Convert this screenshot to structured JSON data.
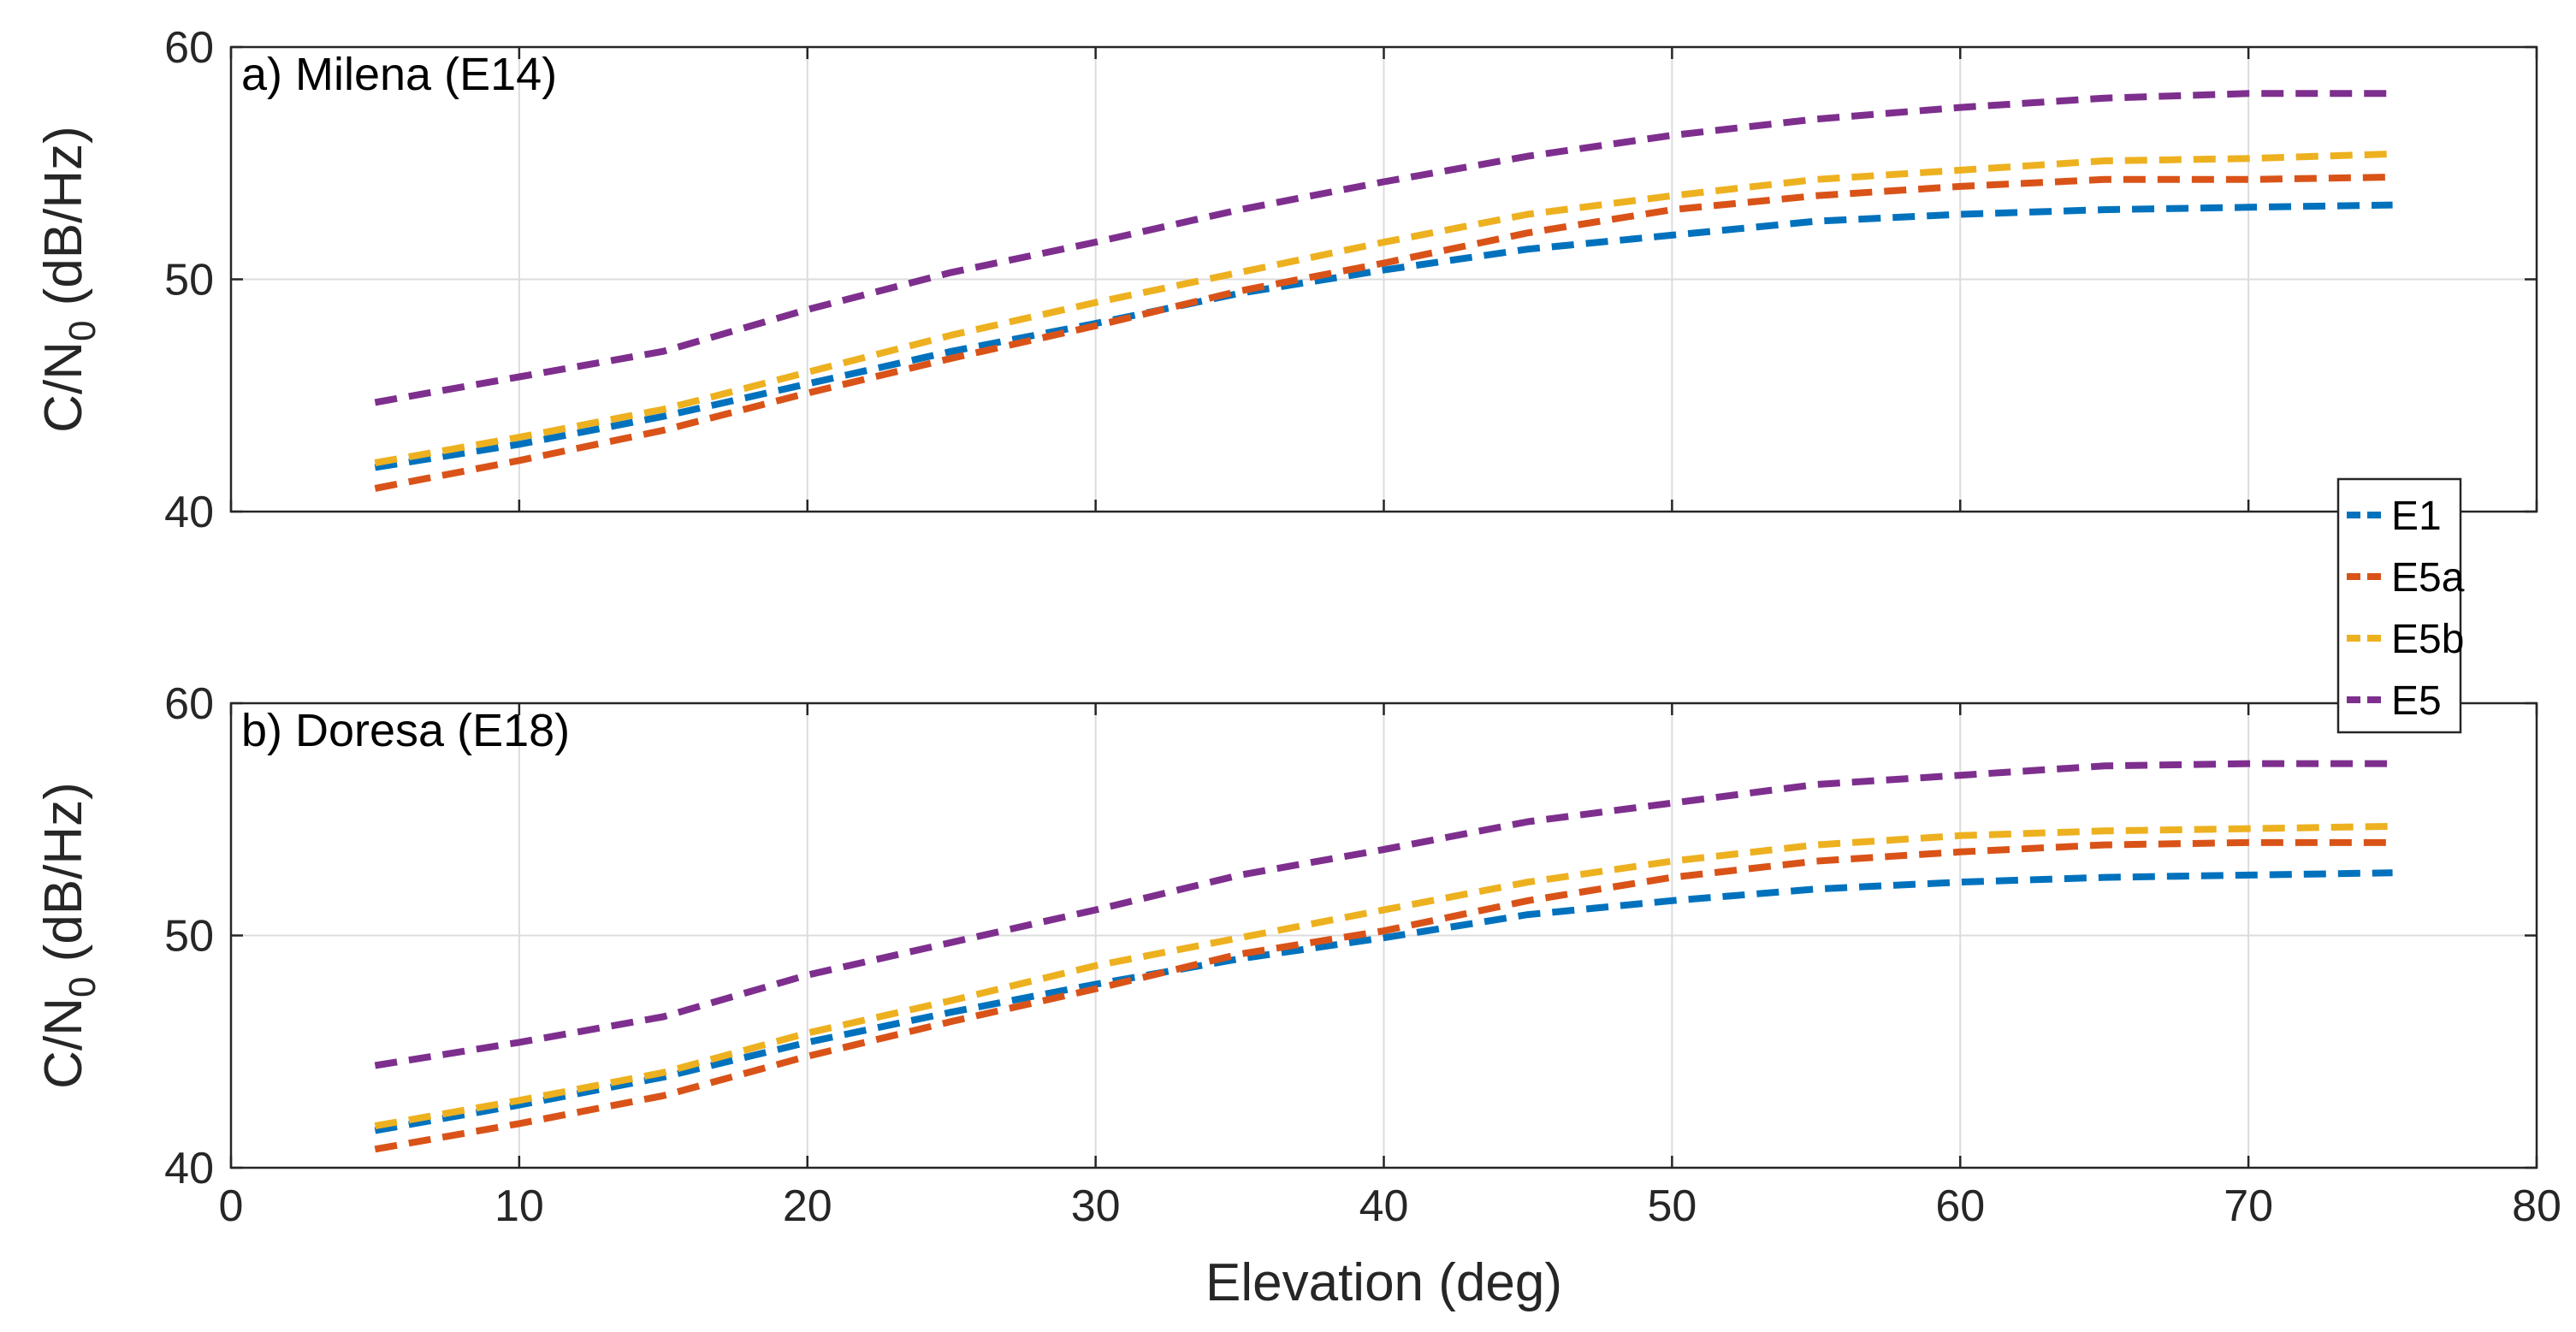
{
  "chart_data": [
    {
      "type": "line",
      "title": "a) Milena (E14)",
      "xlabel": "",
      "ylabel": "C/N0 (dB/Hz)",
      "ylabel_parts": {
        "before": "C/N",
        "sub": "0",
        "after": " (dB/Hz)"
      },
      "xlim": [
        0,
        80
      ],
      "ylim": [
        40,
        60
      ],
      "xticks": [
        "0",
        "10",
        "20",
        "30",
        "40",
        "50",
        "60",
        "70",
        "80"
      ],
      "yticks": [
        "40",
        "50",
        "60"
      ],
      "grid": true,
      "x": [
        5,
        10,
        15,
        20,
        25,
        30,
        35,
        40,
        45,
        50,
        55,
        60,
        65,
        70,
        75
      ],
      "series": [
        {
          "name": "E1",
          "color": "#0072BD",
          "values": [
            41.9,
            42.9,
            44.1,
            45.5,
            46.9,
            48.1,
            49.4,
            50.4,
            51.3,
            51.9,
            52.5,
            52.8,
            53.0,
            53.1,
            53.2
          ]
        },
        {
          "name": "E5a",
          "color": "#D95319",
          "values": [
            41.0,
            42.2,
            43.5,
            45.1,
            46.6,
            48.0,
            49.5,
            50.7,
            52.0,
            53.0,
            53.6,
            54.0,
            54.3,
            54.3,
            54.4
          ]
        },
        {
          "name": "E5b",
          "color": "#EDB120",
          "values": [
            42.1,
            43.2,
            44.4,
            46.0,
            47.6,
            49.0,
            50.3,
            51.6,
            52.8,
            53.6,
            54.3,
            54.7,
            55.1,
            55.2,
            55.4
          ]
        },
        {
          "name": "E5",
          "color": "#7E2F8E",
          "values": [
            44.7,
            45.8,
            46.9,
            48.7,
            50.3,
            51.6,
            53.0,
            54.2,
            55.3,
            56.2,
            56.9,
            57.4,
            57.8,
            58.0,
            58.0
          ]
        }
      ]
    },
    {
      "type": "line",
      "title": "b) Doresa (E18)",
      "xlabel": "Elevation (deg)",
      "ylabel": "C/N0 (dB/Hz)",
      "ylabel_parts": {
        "before": "C/N",
        "sub": "0",
        "after": " (dB/Hz)"
      },
      "xlim": [
        0,
        80
      ],
      "ylim": [
        40,
        60
      ],
      "xticks": [
        "0",
        "10",
        "20",
        "30",
        "40",
        "50",
        "60",
        "70",
        "80"
      ],
      "yticks": [
        "40",
        "50",
        "60"
      ],
      "grid": true,
      "x": [
        5,
        10,
        15,
        20,
        25,
        30,
        35,
        40,
        45,
        50,
        55,
        60,
        65,
        70,
        75
      ],
      "series": [
        {
          "name": "E1",
          "color": "#0072BD",
          "values": [
            41.6,
            42.7,
            43.9,
            45.4,
            46.7,
            47.9,
            49.0,
            49.9,
            50.9,
            51.5,
            52.0,
            52.3,
            52.5,
            52.6,
            52.7
          ]
        },
        {
          "name": "E5a",
          "color": "#D95319",
          "values": [
            40.8,
            41.9,
            43.1,
            44.8,
            46.3,
            47.7,
            49.2,
            50.2,
            51.5,
            52.5,
            53.2,
            53.6,
            53.9,
            54.0,
            54.0
          ]
        },
        {
          "name": "E5b",
          "color": "#EDB120",
          "values": [
            41.8,
            42.9,
            44.1,
            45.8,
            47.2,
            48.7,
            49.9,
            51.1,
            52.3,
            53.2,
            53.9,
            54.3,
            54.5,
            54.6,
            54.7
          ]
        },
        {
          "name": "E5",
          "color": "#7E2F8E",
          "values": [
            44.4,
            45.4,
            46.5,
            48.3,
            49.7,
            51.1,
            52.6,
            53.7,
            54.9,
            55.7,
            56.5,
            56.9,
            57.3,
            57.4,
            57.4
          ]
        }
      ]
    }
  ],
  "legend": {
    "placement": "right, between panels",
    "entries": [
      {
        "label": "E1",
        "color": "#0072BD"
      },
      {
        "label": "E5a",
        "color": "#D95319"
      },
      {
        "label": "E5b",
        "color": "#EDB120"
      },
      {
        "label": "E5",
        "color": "#7E2F8E"
      }
    ]
  }
}
